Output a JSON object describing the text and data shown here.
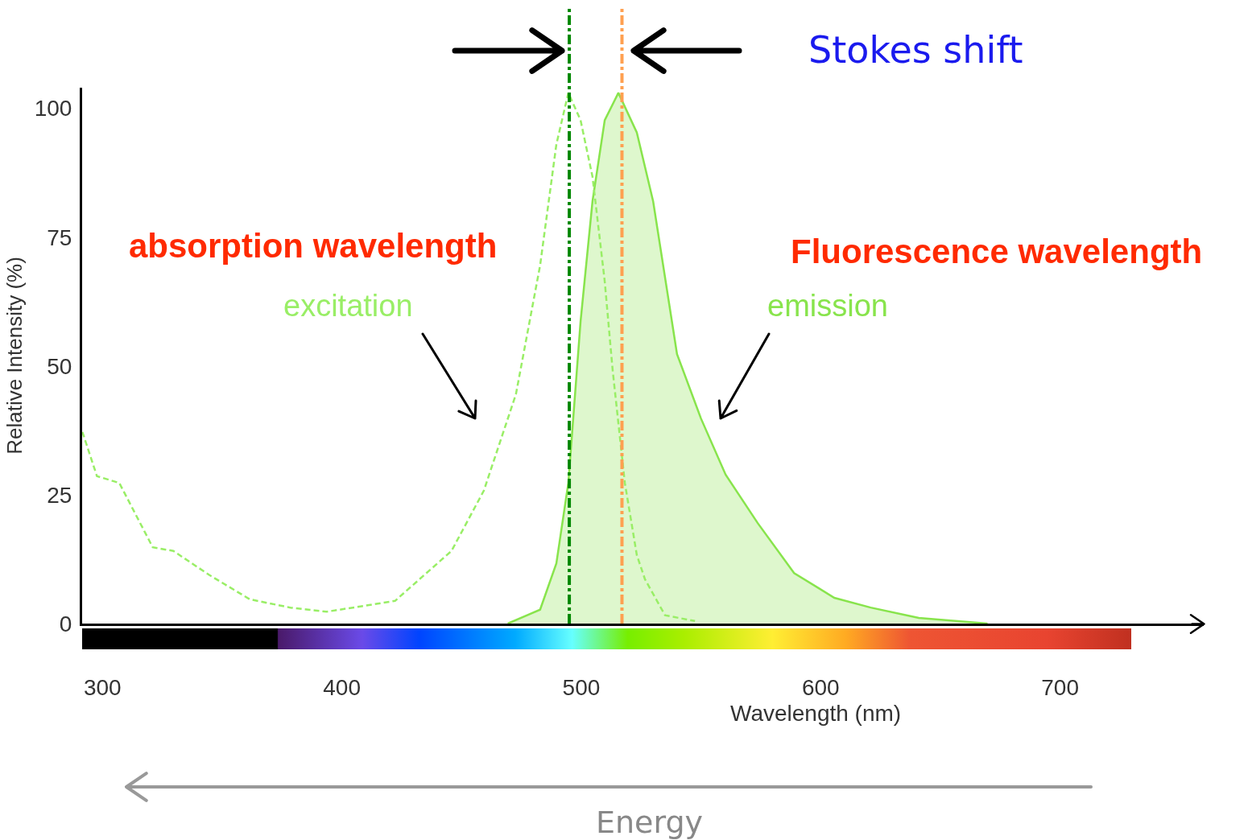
{
  "chart_data": {
    "type": "line",
    "xlabel": "Wavelength (nm)",
    "ylabel": "Relative Intensity (%)",
    "xlim": [
      291.5,
      760
    ],
    "xticks": [
      300,
      400,
      500,
      600,
      700
    ],
    "ylim": [
      0,
      104
    ],
    "yticks": [
      0,
      25,
      50,
      75,
      100
    ],
    "grid": false,
    "marker": "none",
    "series": [
      {
        "name": "excitation",
        "type": "line",
        "line_style": "dashed",
        "color": "#99ee66",
        "x": [
          291.6,
          297.7,
          307,
          321,
          329.6,
          344.7,
          361.6,
          378.5,
          393.6,
          408.8,
          422.2,
          445.8,
          459.3,
          472.7,
          482.8,
          489.6,
          494.6,
          499.7,
          504.7,
          509.8,
          513.1,
          518.2,
          523.2,
          526.6,
          535,
          547.5
        ],
        "values": [
          37.2,
          28.6,
          27.3,
          14.8,
          14.1,
          9.4,
          4.7,
          3.1,
          2.3,
          3.4,
          4.4,
          14.1,
          25.8,
          44.5,
          69.5,
          93,
          103,
          97.7,
          86.7,
          66.4,
          49.2,
          27.3,
          13.3,
          8.6,
          1.6,
          0.5
        ]
      },
      {
        "name": "emission",
        "type": "area",
        "line_style": "solid",
        "color": "#88e44c",
        "x": [
          469.3,
          482.8,
          489.6,
          494.6,
          499.7,
          504.7,
          509.8,
          515.5,
          523.2,
          530,
          540,
          550,
          560.3,
          573.7,
          588.9,
          605.7,
          620.9,
          641,
          669.7
        ],
        "values": [
          0,
          2.7,
          11.7,
          27.3,
          58.6,
          82,
          97.7,
          103,
          95.3,
          82,
          52.3,
          39.8,
          28.9,
          19.5,
          9.8,
          5,
          3.1,
          1.1,
          0
        ]
      }
    ],
    "ref_lines": [
      {
        "axis": "x",
        "value": 495,
        "color": "#008800",
        "line_style": "dashdot"
      },
      {
        "axis": "x",
        "value": 517,
        "color": "#ffa050",
        "line_style": "dashdot"
      }
    ],
    "annotations": [
      "Stokes shift",
      "absorption wavelength",
      "Fluorescence wavelength",
      "Energy"
    ]
  }
}
